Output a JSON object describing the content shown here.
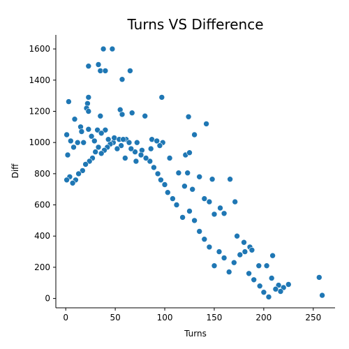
{
  "chart_data": {
    "type": "scatter",
    "title": "Turns VS Difference",
    "xlabel": "Turns",
    "ylabel": "Diff",
    "xlim": [
      -10,
      272
    ],
    "ylim": [
      -60,
      1690
    ],
    "xticks": [
      0,
      50,
      100,
      150,
      200,
      250
    ],
    "yticks": [
      0,
      200,
      400,
      600,
      800,
      1000,
      1200,
      1400,
      1600
    ],
    "grid": false,
    "marker_color": "#1f77b4",
    "series": [
      {
        "points": [
          [
            38,
            1600
          ],
          [
            47,
            1600
          ],
          [
            23,
            1490
          ],
          [
            33,
            1500
          ],
          [
            35,
            1460
          ],
          [
            40,
            1460
          ],
          [
            65,
            1460
          ],
          [
            57,
            1405
          ],
          [
            3,
            1262
          ],
          [
            23,
            1290
          ],
          [
            97,
            1290
          ],
          [
            22,
            1250
          ],
          [
            21,
            1220
          ],
          [
            23,
            1200
          ],
          [
            55,
            1210
          ],
          [
            67,
            1190
          ],
          [
            80,
            1170
          ],
          [
            35,
            1170
          ],
          [
            124,
            1165
          ],
          [
            9,
            1150
          ],
          [
            57,
            1180
          ],
          [
            15,
            1100
          ],
          [
            16,
            1070
          ],
          [
            23,
            1085
          ],
          [
            32,
            1080
          ],
          [
            40,
            1080
          ],
          [
            36,
            1060
          ],
          [
            142,
            1120
          ],
          [
            130,
            1050
          ],
          [
            98,
            1000
          ],
          [
            95,
            980
          ],
          [
            61,
            1020
          ],
          [
            64,
            1000
          ],
          [
            105,
            900
          ],
          [
            121,
            920
          ],
          [
            125,
            935
          ],
          [
            87,
            1020
          ],
          [
            92,
            1010
          ],
          [
            72,
            1000
          ],
          [
            77,
            950
          ],
          [
            86,
            960
          ],
          [
            71,
            880
          ],
          [
            114,
            805
          ],
          [
            123,
            805
          ],
          [
            148,
            765
          ],
          [
            135,
            780
          ],
          [
            166,
            765
          ],
          [
            120,
            720
          ],
          [
            128,
            700
          ],
          [
            156,
            580
          ],
          [
            171,
            620
          ],
          [
            160,
            545
          ],
          [
            140,
            640
          ],
          [
            145,
            620
          ],
          [
            150,
            540
          ],
          [
            173,
            400
          ],
          [
            180,
            360
          ],
          [
            181,
            300
          ],
          [
            186,
            330
          ],
          [
            188,
            310
          ],
          [
            176,
            280
          ],
          [
            195,
            210
          ],
          [
            203,
            210
          ],
          [
            209,
            275
          ],
          [
            208,
            130
          ],
          [
            215,
            85
          ],
          [
            220,
            70
          ],
          [
            217,
            45
          ],
          [
            225,
            90
          ],
          [
            212,
            60
          ],
          [
            196,
            80
          ],
          [
            200,
            40
          ],
          [
            205,
            10
          ],
          [
            190,
            120
          ],
          [
            185,
            160
          ],
          [
            170,
            230
          ],
          [
            165,
            170
          ],
          [
            160,
            260
          ],
          [
            155,
            300
          ],
          [
            150,
            210
          ],
          [
            145,
            330
          ],
          [
            140,
            380
          ],
          [
            135,
            430
          ],
          [
            130,
            500
          ],
          [
            125,
            560
          ],
          [
            118,
            520
          ],
          [
            112,
            600
          ],
          [
            108,
            640
          ],
          [
            103,
            680
          ],
          [
            100,
            730
          ],
          [
            96,
            760
          ],
          [
            93,
            800
          ],
          [
            89,
            840
          ],
          [
            85,
            880
          ],
          [
            81,
            900
          ],
          [
            76,
            920
          ],
          [
            70,
            940
          ],
          [
            66,
            960
          ],
          [
            60,
            900
          ],
          [
            56,
            980
          ],
          [
            52,
            960
          ],
          [
            48,
            1000
          ],
          [
            45,
            990
          ],
          [
            42,
            970
          ],
          [
            39,
            950
          ],
          [
            36,
            930
          ],
          [
            33,
            970
          ],
          [
            30,
            940
          ],
          [
            27,
            900
          ],
          [
            24,
            880
          ],
          [
            20,
            860
          ],
          [
            17,
            820
          ],
          [
            13,
            800
          ],
          [
            10,
            760
          ],
          [
            7,
            740
          ],
          [
            4,
            780
          ],
          [
            1,
            760
          ],
          [
            2,
            920
          ],
          [
            1,
            1050
          ],
          [
            5,
            1010
          ],
          [
            8,
            970
          ],
          [
            12,
            1000
          ],
          [
            18,
            1000
          ],
          [
            26,
            1040
          ],
          [
            29,
            1010
          ],
          [
            43,
            1020
          ],
          [
            49,
            1030
          ],
          [
            54,
            1020
          ],
          [
            58,
            1020
          ],
          [
            259,
            20
          ],
          [
            256,
            135
          ]
        ]
      }
    ]
  }
}
